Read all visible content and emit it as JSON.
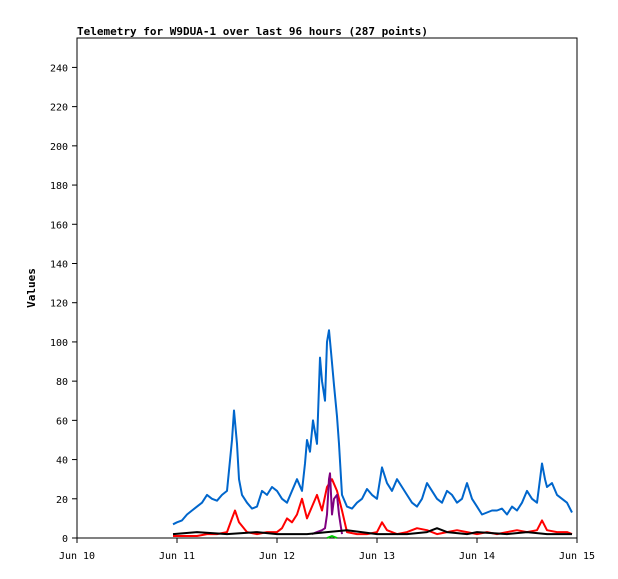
{
  "chart_data": {
    "type": "line",
    "title": "Telemetry for W9DUA-1 over last 96 hours (287 points)",
    "xlabel": "",
    "ylabel": "Values",
    "ylim": [
      0,
      255
    ],
    "yticks": [
      0,
      20,
      40,
      60,
      80,
      100,
      120,
      140,
      160,
      180,
      200,
      220,
      240
    ],
    "xlim": [
      0,
      5
    ],
    "xticks": [
      {
        "value": 0,
        "label": "Jun 10"
      },
      {
        "value": 1,
        "label": "Jun 11"
      },
      {
        "value": 2,
        "label": "Jun 12"
      },
      {
        "value": 3,
        "label": "Jun 13"
      },
      {
        "value": 4,
        "label": "Jun 14"
      },
      {
        "value": 5,
        "label": "Jun 15"
      }
    ],
    "grid": false,
    "legend": "none",
    "series": [
      {
        "color": "#0066cc",
        "x": [
          0.96,
          1.0,
          1.05,
          1.1,
          1.15,
          1.2,
          1.25,
          1.3,
          1.35,
          1.4,
          1.45,
          1.5,
          1.55,
          1.57,
          1.6,
          1.62,
          1.65,
          1.7,
          1.75,
          1.8,
          1.85,
          1.9,
          1.95,
          2.0,
          2.05,
          2.1,
          2.15,
          2.2,
          2.25,
          2.28,
          2.3,
          2.33,
          2.36,
          2.4,
          2.43,
          2.45,
          2.48,
          2.5,
          2.52,
          2.54,
          2.57,
          2.6,
          2.62,
          2.65,
          2.7,
          2.75,
          2.8,
          2.85,
          2.9,
          2.95,
          3.0,
          3.05,
          3.1,
          3.15,
          3.2,
          3.25,
          3.3,
          3.35,
          3.4,
          3.45,
          3.5,
          3.55,
          3.6,
          3.65,
          3.7,
          3.75,
          3.8,
          3.85,
          3.9,
          3.95,
          4.0,
          4.05,
          4.1,
          4.15,
          4.2,
          4.25,
          4.3,
          4.35,
          4.4,
          4.45,
          4.5,
          4.55,
          4.6,
          4.63,
          4.65,
          4.68,
          4.7,
          4.75,
          4.8,
          4.85,
          4.9,
          4.95
        ],
        "y": [
          7,
          8,
          9,
          12,
          14,
          16,
          18,
          22,
          20,
          19,
          22,
          24,
          50,
          65,
          48,
          30,
          22,
          18,
          15,
          16,
          24,
          22,
          26,
          24,
          20,
          18,
          24,
          30,
          24,
          38,
          50,
          44,
          60,
          48,
          92,
          80,
          70,
          100,
          106,
          95,
          78,
          62,
          48,
          22,
          16,
          15,
          18,
          20,
          25,
          22,
          20,
          36,
          28,
          24,
          30,
          26,
          22,
          18,
          16,
          20,
          28,
          24,
          20,
          18,
          24,
          22,
          18,
          20,
          28,
          20,
          16,
          12,
          13,
          14,
          14,
          15,
          12,
          16,
          14,
          18,
          24,
          20,
          18,
          30,
          38,
          30,
          26,
          28,
          22,
          20,
          18,
          13
        ]
      },
      {
        "color": "#ff0000",
        "x": [
          0.96,
          1.1,
          1.2,
          1.3,
          1.4,
          1.5,
          1.55,
          1.58,
          1.62,
          1.7,
          1.8,
          1.9,
          2.0,
          2.05,
          2.1,
          2.15,
          2.2,
          2.25,
          2.3,
          2.35,
          2.4,
          2.45,
          2.5,
          2.55,
          2.6,
          2.65,
          2.7,
          2.8,
          2.9,
          3.0,
          3.05,
          3.1,
          3.2,
          3.3,
          3.4,
          3.5,
          3.6,
          3.7,
          3.8,
          3.9,
          4.0,
          4.1,
          4.2,
          4.3,
          4.4,
          4.5,
          4.6,
          4.65,
          4.7,
          4.8,
          4.9,
          4.95
        ],
        "y": [
          1,
          1,
          1,
          2,
          2,
          3,
          10,
          14,
          8,
          3,
          2,
          3,
          3,
          5,
          10,
          8,
          12,
          20,
          10,
          16,
          22,
          14,
          26,
          30,
          24,
          14,
          3,
          2,
          2,
          3,
          8,
          4,
          2,
          3,
          5,
          4,
          2,
          3,
          4,
          3,
          2,
          3,
          2,
          3,
          4,
          3,
          4,
          9,
          4,
          3,
          3,
          2
        ]
      },
      {
        "color": "#800080",
        "x": [
          2.35,
          2.4,
          2.45,
          2.48,
          2.5,
          2.52,
          2.53,
          2.55,
          2.57,
          2.6,
          2.62,
          2.65
        ],
        "y": [
          2,
          3,
          4,
          5,
          12,
          30,
          33,
          12,
          20,
          22,
          12,
          2
        ]
      },
      {
        "color": "#00cc00",
        "x": [
          2.5,
          2.55,
          2.6
        ],
        "y": [
          0,
          1,
          0
        ]
      },
      {
        "color": "#000000",
        "x": [
          0.96,
          1.2,
          1.5,
          1.8,
          2.0,
          2.3,
          2.5,
          2.7,
          3.0,
          3.3,
          3.5,
          3.6,
          3.7,
          3.9,
          4.0,
          4.3,
          4.5,
          4.7,
          4.9,
          4.95
        ],
        "y": [
          2,
          3,
          2,
          3,
          2,
          2,
          3,
          4,
          2,
          2,
          3,
          5,
          3,
          2,
          3,
          2,
          3,
          2,
          2,
          2
        ]
      }
    ]
  }
}
